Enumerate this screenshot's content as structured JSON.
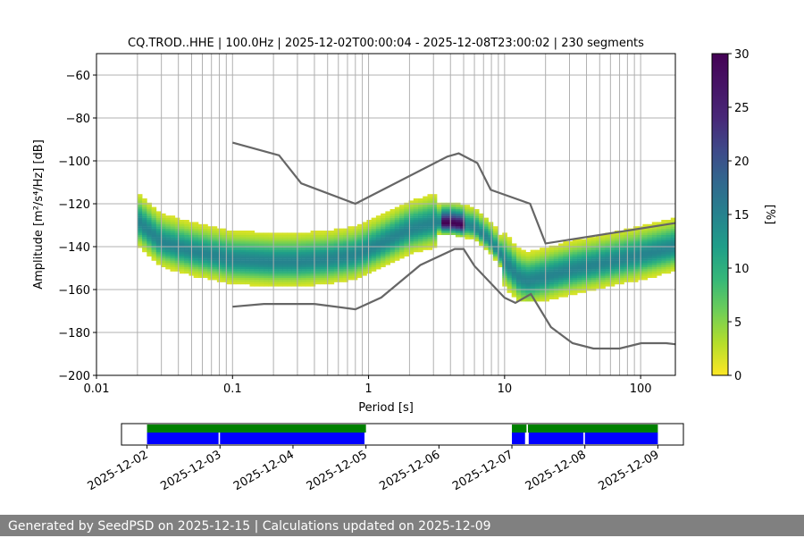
{
  "footer": {
    "text": "Generated by SeedPSD on 2025-12-15 | Calculations updated on 2025-12-09"
  },
  "colors": {
    "footer_bg": "#808080",
    "noise_model": "#666666",
    "coverage_green": "#008000",
    "coverage_blue": "#0000ff",
    "grid": "#b0b0b0"
  },
  "chart_data": [
    {
      "type": "heatmap",
      "title": "CQ.TROD..HHE | 100.0Hz | 2025-12-02T00:00:04 - 2025-12-08T23:00:02 | 230 segments",
      "xlabel": "Period [s]",
      "ylabel": "Amplitude [m²/s⁴/Hz] [dB]",
      "xscale": "log",
      "xlim": [
        0.01,
        180
      ],
      "ylim": [
        -200,
        -50
      ],
      "xticks": [
        0.01,
        0.1,
        1,
        10,
        100
      ],
      "xtick_labels": [
        "0.01",
        "0.1",
        "1",
        "10",
        "100"
      ],
      "yticks": [
        -200,
        -180,
        -160,
        -140,
        -120,
        -100,
        -80,
        -60
      ],
      "ytick_labels": [
        "−200",
        "−180",
        "−160",
        "−140",
        "−120",
        "−100",
        "−80",
        "−60"
      ],
      "grid": true,
      "colorbar": {
        "label": "[%]",
        "range": [
          0,
          30
        ],
        "ticks": [
          0,
          5,
          10,
          15,
          20,
          25,
          30
        ],
        "tick_labels": [
          "0",
          "5",
          "10",
          "15",
          "20",
          "25",
          "30"
        ],
        "colormap": "viridis_r"
      },
      "mode_curve": {
        "period": [
          0.02,
          0.03,
          0.05,
          0.1,
          0.2,
          0.3,
          0.5,
          0.8,
          1.2,
          2.0,
          3.0,
          4.0,
          5.0,
          6.0,
          8.0,
          10,
          13,
          15,
          20,
          30,
          50,
          100,
          180
        ],
        "db": [
          -128,
          -138,
          -142,
          -146,
          -147,
          -147,
          -146,
          -144,
          -139,
          -132,
          -129,
          -129,
          -130,
          -131,
          -138,
          -147,
          -155,
          -156,
          -154,
          -151,
          -148,
          -144,
          -140
        ]
      },
      "nhnm": {
        "period": [
          0.1,
          0.22,
          0.32,
          0.8,
          3.8,
          4.6,
          6.3,
          7.9,
          15.4,
          20,
          180
        ],
        "db": [
          -91.5,
          -97.4,
          -110.5,
          -120,
          -98,
          -96.5,
          -101,
          -113.5,
          -120,
          -138.5,
          -129
        ]
      },
      "nlnm": {
        "period": [
          0.1,
          0.17,
          0.4,
          0.8,
          1.24,
          2.4,
          4.3,
          5.0,
          6.0,
          10,
          12,
          15.6,
          21.9,
          31.6,
          45,
          70,
          101,
          154,
          180
        ],
        "db": [
          -168,
          -166.7,
          -166.7,
          -169.2,
          -163.7,
          -148.6,
          -141.1,
          -141.1,
          -149,
          -163.8,
          -166.2,
          -162.1,
          -177.5,
          -185,
          -187.5,
          -187.5,
          -185,
          -185,
          -185.5
        ]
      }
    },
    {
      "type": "timeline",
      "xticks": [
        "2025-12-02",
        "2025-12-03",
        "2025-12-04",
        "2025-12-05",
        "2025-12-06",
        "2025-12-07",
        "2025-12-08",
        "2025-12-09"
      ],
      "x_day_range": [
        -0.35,
        7.35
      ],
      "green_intervals": [
        [
          0.0,
          3.0
        ],
        [
          5.0,
          5.2
        ],
        [
          5.22,
          7.0
        ]
      ],
      "blue_intervals": [
        [
          0.0,
          0.98
        ],
        [
          1.0,
          2.98
        ],
        [
          5.0,
          5.18
        ],
        [
          5.23,
          5.98
        ],
        [
          6.0,
          7.0
        ]
      ]
    }
  ]
}
